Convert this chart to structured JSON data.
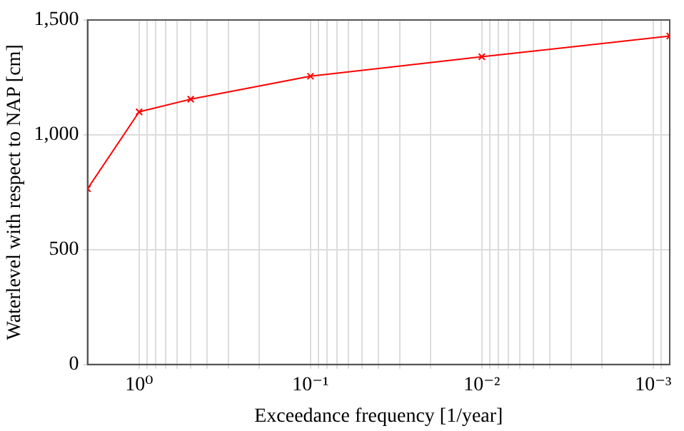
{
  "chart_data": {
    "type": "line",
    "xlabel": "Exceedance frequency [1/year]",
    "ylabel": "Waterlevel with respect to NAP [cm]",
    "x": [
      2,
      1,
      0.5,
      0.1,
      0.01,
      0.0008
    ],
    "series": [
      {
        "color": "#ff0000",
        "values": [
          765,
          1100,
          1155,
          1255,
          1340,
          1430
        ]
      }
    ],
    "log": "x",
    "xlim": [
      2,
      0.0008
    ],
    "xticks": [
      {
        "value": 1,
        "label": "10⁰"
      },
      {
        "value": 0.1,
        "label": "10⁻¹"
      },
      {
        "value": 0.01,
        "label": "10⁻²"
      },
      {
        "value": 0.001,
        "label": "10⁻³"
      },
      {
        "value": 0.9,
        "label": null
      },
      {
        "value": 0.8,
        "label": null
      },
      {
        "value": 0.7,
        "label": null
      },
      {
        "value": 0.6,
        "label": null
      },
      {
        "value": 0.5,
        "label": null
      },
      {
        "value": 0.4,
        "label": null
      },
      {
        "value": 0.3,
        "label": null
      },
      {
        "value": 0.2,
        "label": null
      },
      {
        "value": 0.09,
        "label": null
      },
      {
        "value": 0.08,
        "label": null
      },
      {
        "value": 0.07,
        "label": null
      },
      {
        "value": 0.06,
        "label": null
      },
      {
        "value": 0.05,
        "label": null
      },
      {
        "value": 0.04,
        "label": null
      },
      {
        "value": 0.03,
        "label": null
      },
      {
        "value": 0.02,
        "label": null
      },
      {
        "value": 0.009,
        "label": null
      },
      {
        "value": 0.008,
        "label": null
      },
      {
        "value": 0.007,
        "label": null
      },
      {
        "value": 0.006,
        "label": null
      },
      {
        "value": 0.005,
        "label": null
      },
      {
        "value": 0.004,
        "label": null
      },
      {
        "value": 0.003,
        "label": null
      },
      {
        "value": 0.002,
        "label": null
      },
      {
        "value": 0.0009,
        "label": null
      }
    ],
    "ylim": [
      0,
      1500
    ],
    "yticks": [
      0,
      500,
      {
        "value": 1000,
        "label": "1,000"
      },
      {
        "value": 1500,
        "label": "1,500"
      }
    ],
    "grid": true,
    "legend": false,
    "marker": "cross",
    "line_style": "solid"
  }
}
